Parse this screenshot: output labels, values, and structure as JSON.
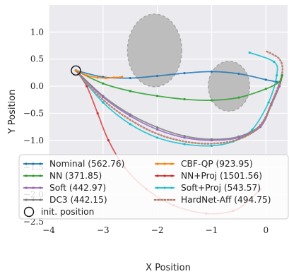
{
  "chart_data": {
    "type": "line",
    "xlabel": "X Position",
    "ylabel": "Y Position",
    "xlim": [
      -4.0,
      0.4
    ],
    "ylim": [
      -2.45,
      1.5
    ],
    "xticks": [
      "−4",
      "−3",
      "−2",
      "−1",
      "0"
    ],
    "yticks": [
      "1.0",
      "0.5",
      "0.0",
      "−0.5",
      "−1.0",
      "−1.5",
      "−2.0",
      "−2.5"
    ],
    "grid": true,
    "legend_position": "lower-center",
    "obstacles": [
      {
        "cx": -2.05,
        "cy": 0.66,
        "rx": 0.5,
        "ry": 0.67
      },
      {
        "cx": -0.68,
        "cy": 0.0,
        "rx": 0.38,
        "ry": 0.46
      }
    ],
    "init_position": {
      "x": -3.5,
      "y": 0.29
    },
    "series": [
      {
        "name": "Nominal (562.76)",
        "color": "#1f77b4",
        "style": "solid",
        "x": [
          -3.5,
          -3.0,
          -2.5,
          -2.0,
          -1.5,
          -1.0,
          -0.5,
          0.0,
          0.2
        ],
        "y": [
          0.29,
          0.17,
          0.15,
          0.19,
          0.24,
          0.27,
          0.23,
          0.12,
          0.08
        ]
      },
      {
        "name": "CBF-QP (923.95)",
        "color": "#ff7f0e",
        "style": "solid",
        "x": [
          -3.5,
          -3.3,
          -3.1,
          -2.95,
          -2.8,
          -2.65
        ],
        "y": [
          0.29,
          0.2,
          0.16,
          0.15,
          0.16,
          0.17
        ]
      },
      {
        "name": "NN (371.85)",
        "color": "#2ca02c",
        "style": "solid",
        "x": [
          -3.5,
          -3.0,
          -2.5,
          -2.0,
          -1.5,
          -1.0,
          -0.5,
          0.0,
          0.25,
          0.3
        ],
        "y": [
          0.29,
          0.05,
          -0.09,
          -0.18,
          -0.24,
          -0.26,
          -0.21,
          -0.05,
          0.08,
          0.2
        ]
      },
      {
        "name": "NN+Proj (1501.56)",
        "color": "#d62728",
        "style": "solid",
        "x": [
          -3.5,
          -3.3,
          -3.1,
          -2.9,
          -2.6,
          -2.2,
          -1.7,
          -1.1,
          -0.6,
          -0.3,
          -0.1
        ],
        "y": [
          0.29,
          0.0,
          -0.5,
          -1.0,
          -1.5,
          -1.9,
          -2.2,
          -2.35,
          -2.3,
          -2.1,
          -1.9
        ]
      },
      {
        "name": "Soft (442.97)",
        "color": "#9467bd",
        "style": "solid",
        "x": [
          -3.5,
          -3.0,
          -2.5,
          -2.0,
          -1.5,
          -1.0,
          -0.5,
          -0.1,
          0.1,
          0.25,
          0.3
        ],
        "y": [
          0.29,
          -0.2,
          -0.55,
          -0.8,
          -0.95,
          -1.0,
          -0.95,
          -0.75,
          -0.35,
          0.0,
          0.2
        ]
      },
      {
        "name": "Soft+Proj (543.57)",
        "color": "#17becf",
        "style": "solid",
        "x": [
          -3.5,
          -3.0,
          -2.5,
          -2.0,
          -1.5,
          -1.0,
          -0.6,
          -0.25,
          0.05,
          0.2,
          0.15,
          -0.3
        ],
        "y": [
          0.29,
          -0.3,
          -0.7,
          -0.95,
          -1.07,
          -1.1,
          -1.02,
          -0.8,
          -0.3,
          0.2,
          0.45,
          0.62
        ]
      },
      {
        "name": "DC3 (442.15)",
        "color": "#7f7f7f",
        "style": "solid",
        "x": [
          -3.5,
          -3.0,
          -2.5,
          -2.0,
          -1.5,
          -1.0,
          -0.5,
          -0.1,
          0.1,
          0.25,
          0.3
        ],
        "y": [
          0.29,
          -0.18,
          -0.52,
          -0.76,
          -0.92,
          -0.98,
          -0.93,
          -0.72,
          -0.32,
          0.0,
          0.2
        ]
      },
      {
        "name": "HardNet-Aff (494.75)",
        "color": "#b07a6a",
        "style": "dotted",
        "x": [
          -3.5,
          -3.0,
          -2.5,
          -2.0,
          -1.5,
          -1.0,
          -0.5,
          -0.1,
          0.15,
          0.3,
          0.25,
          0.0
        ],
        "y": [
          0.29,
          -0.25,
          -0.62,
          -0.88,
          -1.02,
          -1.06,
          -0.98,
          -0.72,
          -0.2,
          0.25,
          0.5,
          0.65
        ]
      }
    ],
    "legend": {
      "left": [
        "Nominal (562.76)",
        "NN (371.85)",
        "Soft (442.97)",
        "DC3 (442.15)",
        "init. position"
      ],
      "right": [
        "CBF-QP (923.95)",
        "NN+Proj (1501.56)",
        "Soft+Proj (543.57)",
        "HardNet-Aff (494.75)"
      ]
    }
  }
}
